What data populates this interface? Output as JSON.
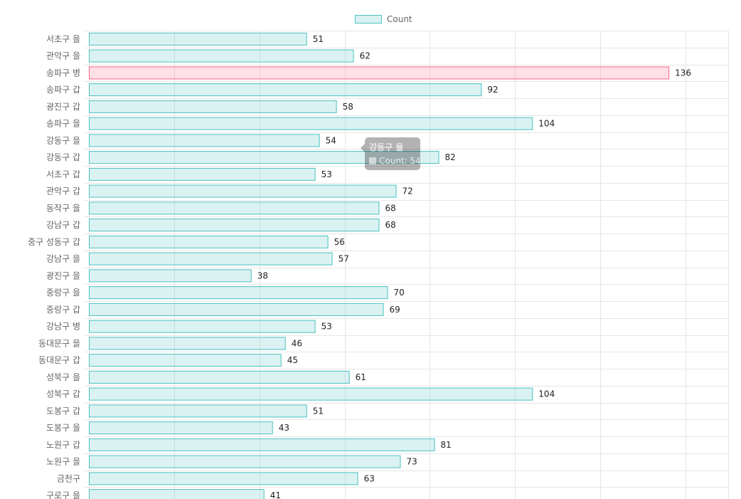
{
  "chart_data": {
    "type": "bar",
    "orientation": "horizontal",
    "categories": [
      "서초구 을",
      "관악구 을",
      "송파구 병",
      "송파구 갑",
      "광진구 갑",
      "송파구 을",
      "강동구 을",
      "강동구 갑",
      "서초구 갑",
      "관악구 갑",
      "동작구 을",
      "강남구 갑",
      "중구 성동구 갑",
      "강남구 을",
      "광진구 을",
      "중랑구 을",
      "중랑구 갑",
      "강남구 병",
      "동대문구 을",
      "동대문구 갑",
      "성북구 을",
      "성북구 갑",
      "도봉구 갑",
      "도봉구 을",
      "노원구 갑",
      "노원구 을",
      "금천구",
      "구로구 을"
    ],
    "series": [
      {
        "name": "Count",
        "values": [
          51,
          62,
          136,
          92,
          58,
          104,
          54,
          82,
          53,
          72,
          68,
          68,
          56,
          57,
          38,
          70,
          69,
          53,
          46,
          45,
          61,
          104,
          51,
          43,
          81,
          73,
          63,
          41
        ]
      }
    ],
    "xlim": [
      0,
      150
    ],
    "grid": true,
    "legend_position": "top",
    "highlighted_category": "송파구 병",
    "colors": {
      "bar_fill": "rgba(75,192,192,0.2)",
      "bar_border": "#4bc0c0",
      "highlight_fill": "rgba(255,99,132,0.2)",
      "highlight_border": "#ff6384",
      "grid": "#e6e6e6",
      "label": "#666666",
      "value_label": "#222222"
    }
  },
  "legend": {
    "label": "Count"
  },
  "tooltip": {
    "title": "강동구 을",
    "body": "Count: 54"
  }
}
